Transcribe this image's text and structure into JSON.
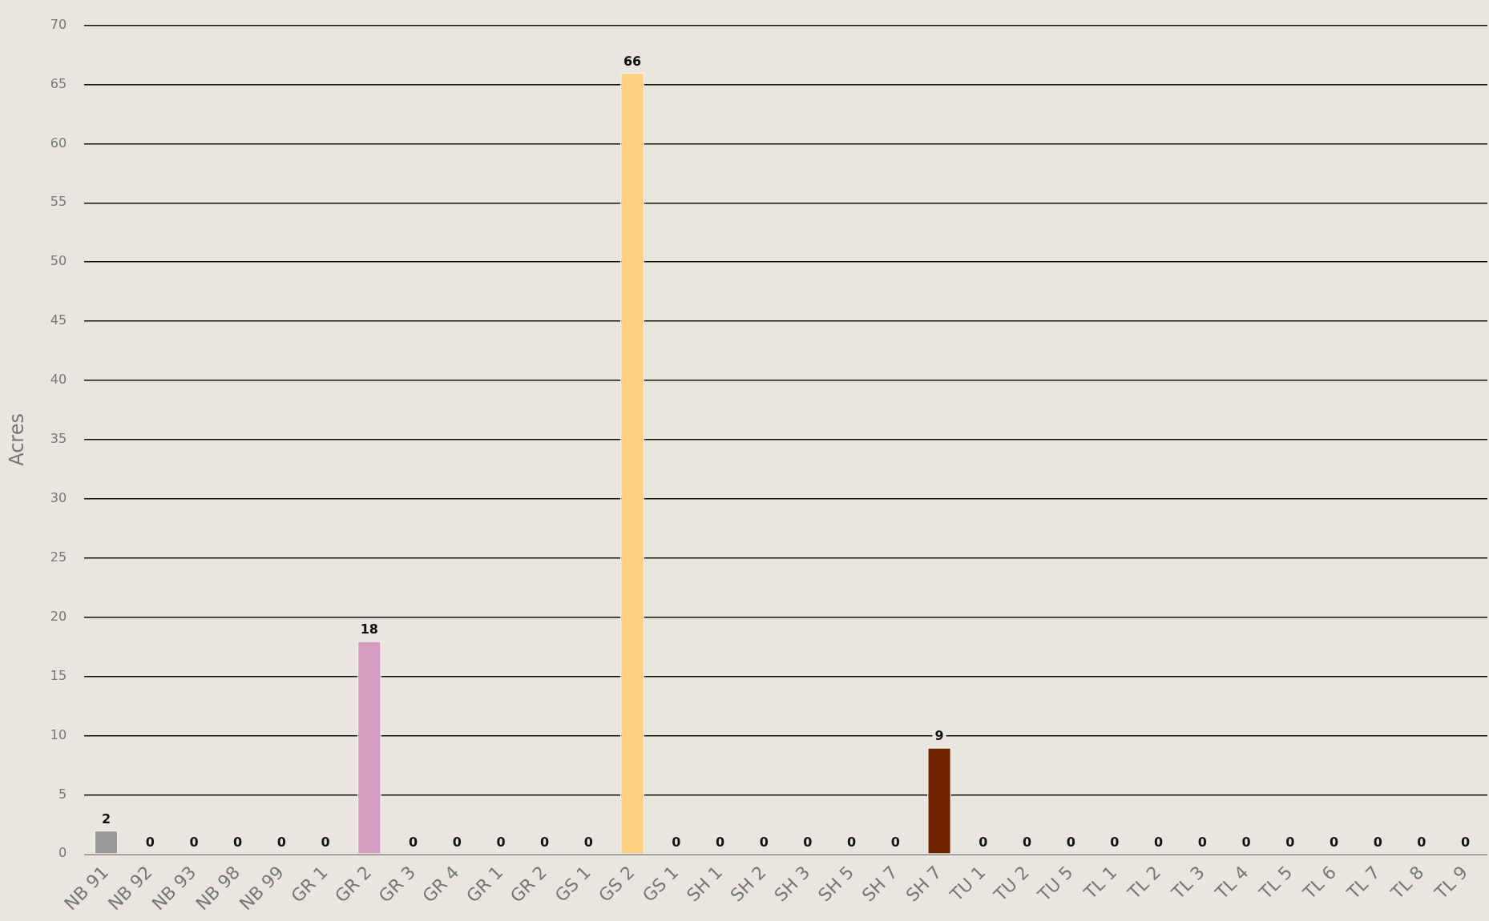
{
  "chart_data": {
    "type": "bar",
    "ylabel": "Acres",
    "categories": [
      "NB 91",
      "NB 92",
      "NB 93",
      "NB 98",
      "NB 99",
      "GR 1",
      "GR 2",
      "GR 3",
      "GR 4",
      "GR 1",
      "GR 2",
      "GS 1",
      "GS 2",
      "GS 1",
      "SH 1",
      "SH 2",
      "SH 3",
      "SH 5",
      "SH 7",
      "SH 7",
      "TU 1",
      "TU 2",
      "TU 5",
      "TL 1",
      "TL 2",
      "TL 3",
      "TL 4",
      "TL 5",
      "TL 6",
      "TL 7",
      "TL 8",
      "TL 9"
    ],
    "values": [
      2,
      0,
      0,
      0,
      0,
      0,
      18,
      0,
      0,
      0,
      0,
      0,
      66,
      0,
      0,
      0,
      0,
      0,
      0,
      9,
      0,
      0,
      0,
      0,
      0,
      0,
      0,
      0,
      0,
      0,
      0,
      0
    ],
    "colors": [
      "#999999",
      "#999999",
      "#999999",
      "#999999",
      "#999999",
      "#d79bbf",
      "#d79bbf",
      "#d79bbf",
      "#d79bbf",
      "#d79bbf",
      "#d79bbf",
      "#fdd17f",
      "#fdd17f",
      "#fdd17f",
      "#722300",
      "#722300",
      "#722300",
      "#722300",
      "#722300",
      "#722300",
      "#722300",
      "#722300",
      "#722300",
      "#722300",
      "#722300",
      "#722300",
      "#722300",
      "#722300",
      "#722300",
      "#722300",
      "#722300",
      "#722300"
    ],
    "ylim": [
      0,
      70
    ],
    "yticks": [
      0,
      5,
      10,
      15,
      20,
      25,
      30,
      35,
      40,
      45,
      50,
      55,
      60,
      65,
      70
    ],
    "grid": "y",
    "data_labels": true,
    "legend": false
  }
}
